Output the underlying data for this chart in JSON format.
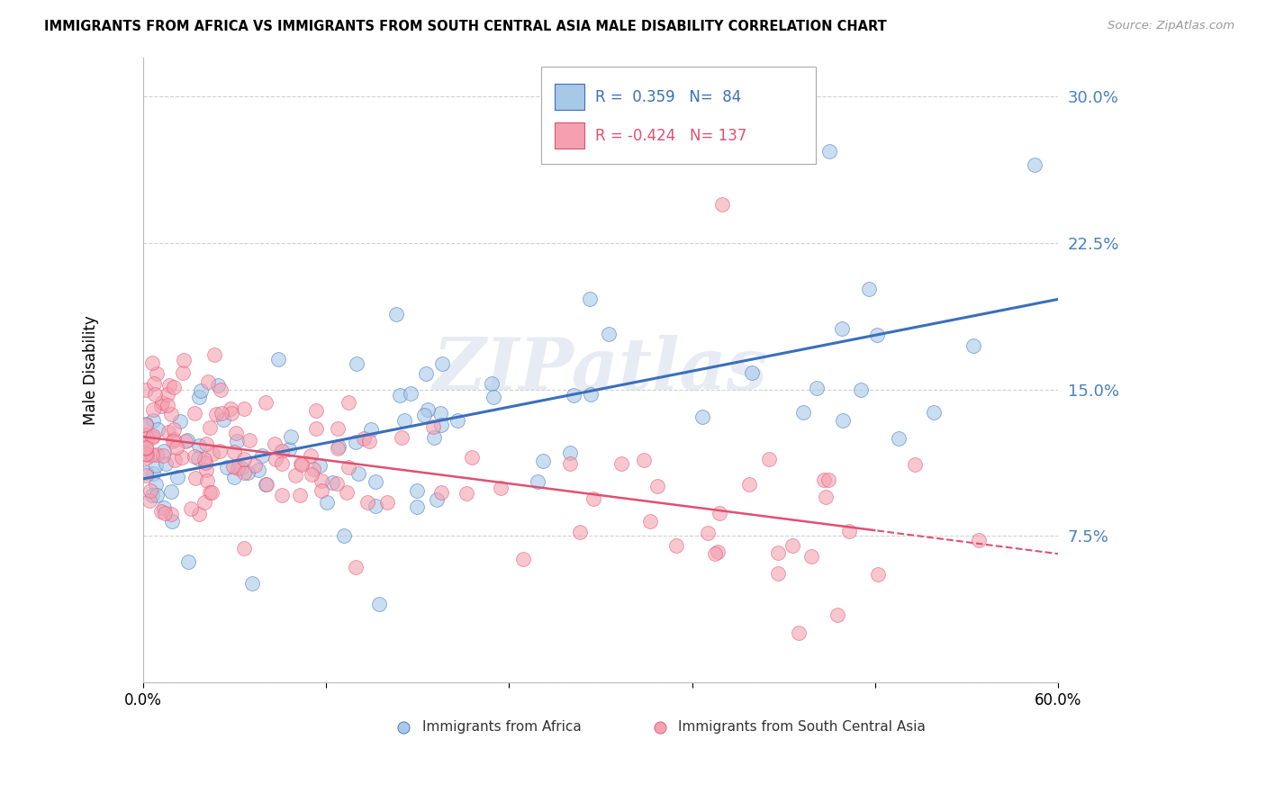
{
  "title": "IMMIGRANTS FROM AFRICA VS IMMIGRANTS FROM SOUTH CENTRAL ASIA MALE DISABILITY CORRELATION CHART",
  "source": "Source: ZipAtlas.com",
  "ylabel": "Male Disability",
  "xlim": [
    0.0,
    0.6
  ],
  "ylim": [
    0.0,
    0.32
  ],
  "blue_R": 0.359,
  "blue_N": 84,
  "pink_R": -0.424,
  "pink_N": 137,
  "blue_color": "#a8c8e8",
  "pink_color": "#f4a0b0",
  "blue_line_color": "#3a6fbb",
  "pink_line_color": "#e05070",
  "blue_tick_color": "#4a7fc0",
  "watermark": "ZIPatlas",
  "legend_label_blue": "Immigrants from Africa",
  "legend_label_pink": "Immigrants from South Central Asia",
  "blue_seed": 42,
  "pink_seed": 99
}
